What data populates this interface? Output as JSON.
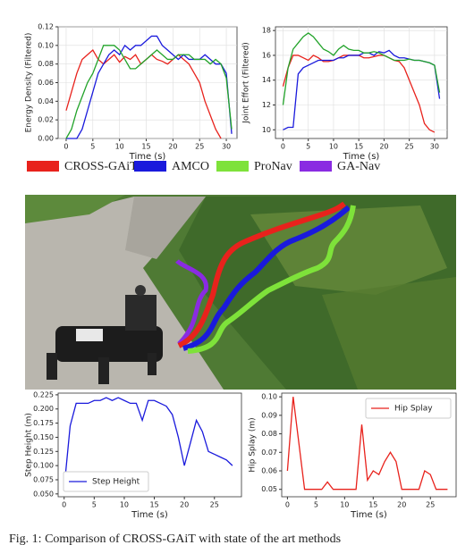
{
  "chart_data": [
    {
      "type": "line",
      "xlabel": "Time (s)",
      "ylabel": "Energy Density (Filtered)",
      "xlim": [
        -1.5,
        32
      ],
      "ylim": [
        0,
        0.12
      ],
      "xticks": [
        0,
        5,
        10,
        15,
        20,
        25,
        30
      ],
      "yticks": [
        {
          "value": 0,
          "label": "0.00"
        },
        {
          "value": 0.02,
          "label": "0.02"
        },
        {
          "value": 0.04,
          "label": "0.04"
        },
        {
          "value": 0.06,
          "label": "0.06"
        },
        {
          "value": 0.08,
          "label": "0.08"
        },
        {
          "value": 0.1,
          "label": "0.10"
        },
        {
          "value": 0.12,
          "label": "0.12"
        }
      ],
      "grid": true,
      "series": [
        {
          "color": "#e8221c",
          "x": [
            0,
            1,
            2,
            3,
            4,
            5,
            6,
            7,
            8,
            9,
            10,
            11,
            12,
            13,
            14,
            15,
            16,
            17,
            18,
            19,
            20,
            21,
            22,
            23,
            24,
            25,
            26,
            27,
            28,
            29
          ],
          "values": [
            0.03,
            0.05,
            0.07,
            0.085,
            0.09,
            0.095,
            0.085,
            0.08,
            0.085,
            0.09,
            0.082,
            0.088,
            0.085,
            0.09,
            0.08,
            0.085,
            0.09,
            0.085,
            0.083,
            0.08,
            0.085,
            0.09,
            0.085,
            0.08,
            0.07,
            0.06,
            0.04,
            0.025,
            0.01,
            0.0
          ]
        },
        {
          "color": "#1a1adc",
          "x": [
            0,
            1,
            2,
            3,
            4,
            5,
            6,
            7,
            8,
            9,
            10,
            11,
            12,
            13,
            14,
            15,
            16,
            17,
            18,
            19,
            20,
            21,
            22,
            23,
            24,
            25,
            26,
            27,
            28,
            29,
            30,
            31
          ],
          "values": [
            0.0,
            0.0,
            0.0,
            0.01,
            0.03,
            0.05,
            0.07,
            0.08,
            0.09,
            0.095,
            0.09,
            0.1,
            0.095,
            0.1,
            0.1,
            0.105,
            0.11,
            0.11,
            0.1,
            0.095,
            0.09,
            0.085,
            0.09,
            0.085,
            0.085,
            0.085,
            0.09,
            0.085,
            0.08,
            0.08,
            0.07,
            0.005
          ]
        },
        {
          "color": "#22a32a",
          "x": [
            0,
            1,
            2,
            3,
            4,
            5,
            6,
            7,
            8,
            9,
            10,
            11,
            12,
            13,
            14,
            15,
            16,
            17,
            18,
            19,
            20,
            21,
            22,
            23,
            24,
            25,
            26,
            27,
            28,
            29,
            30,
            31
          ],
          "values": [
            0.0,
            0.01,
            0.03,
            0.045,
            0.06,
            0.07,
            0.085,
            0.1,
            0.1,
            0.1,
            0.095,
            0.085,
            0.075,
            0.075,
            0.08,
            0.085,
            0.09,
            0.095,
            0.09,
            0.085,
            0.085,
            0.09,
            0.09,
            0.09,
            0.085,
            0.085,
            0.085,
            0.08,
            0.085,
            0.08,
            0.065,
            0.01
          ]
        }
      ]
    },
    {
      "type": "line",
      "xlabel": "Time (s)",
      "ylabel": "Joint Effort (Filtered)",
      "xlim": [
        -1.5,
        32.5
      ],
      "ylim": [
        9.3,
        18.3
      ],
      "xticks": [
        0,
        5,
        10,
        15,
        20,
        25,
        30
      ],
      "yticks": [
        10,
        12,
        14,
        16,
        18
      ],
      "grid": true,
      "series": [
        {
          "color": "#e8221c",
          "x": [
            0,
            1,
            2,
            3,
            4,
            5,
            6,
            7,
            8,
            9,
            10,
            11,
            12,
            13,
            14,
            15,
            16,
            17,
            18,
            19,
            20,
            21,
            22,
            23,
            24,
            25,
            26,
            27,
            28,
            29,
            30
          ],
          "values": [
            13.5,
            15,
            16,
            16,
            15.8,
            15.6,
            16,
            15.8,
            15.5,
            15.5,
            15.6,
            15.8,
            16,
            16,
            16,
            16,
            15.8,
            15.8,
            15.9,
            16,
            16,
            15.8,
            15.6,
            15.5,
            15,
            14,
            13,
            12,
            10.5,
            10,
            9.8
          ]
        },
        {
          "color": "#1a1adc",
          "x": [
            0,
            1,
            2,
            3,
            4,
            5,
            6,
            7,
            8,
            9,
            10,
            11,
            12,
            13,
            14,
            15,
            16,
            17,
            18,
            19,
            20,
            21,
            22,
            23,
            24,
            25,
            26,
            27,
            28,
            29,
            30,
            31
          ],
          "values": [
            10,
            10.2,
            10.2,
            14.5,
            15,
            15.2,
            15.4,
            15.6,
            15.6,
            15.6,
            15.6,
            15.8,
            15.8,
            16,
            16,
            16,
            16.2,
            16.2,
            16,
            16.3,
            16.2,
            16.4,
            16,
            15.8,
            15.8,
            15.7,
            15.6,
            15.6,
            15.5,
            15.4,
            15.2,
            12.5
          ]
        },
        {
          "color": "#22a32a",
          "x": [
            0,
            1,
            2,
            3,
            4,
            5,
            6,
            7,
            8,
            9,
            10,
            11,
            12,
            13,
            14,
            15,
            16,
            17,
            18,
            19,
            20,
            21,
            22,
            23,
            24,
            25,
            26,
            27,
            28,
            29,
            30,
            31
          ],
          "values": [
            12,
            15,
            16.5,
            17,
            17.5,
            17.8,
            17.5,
            17,
            16.5,
            16.3,
            16,
            16.5,
            16.8,
            16.5,
            16.4,
            16.4,
            16.2,
            16.2,
            16.3,
            16.2,
            16,
            15.8,
            15.6,
            15.6,
            15.6,
            15.7,
            15.6,
            15.6,
            15.5,
            15.4,
            15.2,
            13
          ]
        }
      ]
    },
    {
      "type": "line",
      "xlabel": "Time (s)",
      "ylabel": "Step Height (m)",
      "xlim": [
        -1,
        29.5
      ],
      "ylim": [
        0.045,
        0.228
      ],
      "xticks": [
        0,
        5,
        10,
        15,
        20,
        25
      ],
      "yticks": [
        {
          "value": 0.05,
          "label": "0.050"
        },
        {
          "value": 0.075,
          "label": "0.075"
        },
        {
          "value": 0.1,
          "label": "0.100"
        },
        {
          "value": 0.125,
          "label": "0.125"
        },
        {
          "value": 0.15,
          "label": "0.150"
        },
        {
          "value": 0.175,
          "label": "0.175"
        },
        {
          "value": 0.2,
          "label": "0.200"
        },
        {
          "value": 0.225,
          "label": "0.225"
        }
      ],
      "grid": false,
      "legend_position": "lower left",
      "series": [
        {
          "name": "Step Height",
          "color": "#1a1adc",
          "x": [
            0,
            1,
            2,
            3,
            4,
            5,
            6,
            7,
            8,
            9,
            10,
            11,
            12,
            13,
            14,
            15,
            16,
            17,
            18,
            19,
            20,
            21,
            22,
            23,
            24,
            25,
            26,
            27,
            28
          ],
          "values": [
            0.06,
            0.17,
            0.21,
            0.21,
            0.21,
            0.215,
            0.215,
            0.22,
            0.215,
            0.22,
            0.215,
            0.21,
            0.21,
            0.18,
            0.215,
            0.215,
            0.21,
            0.205,
            0.19,
            0.15,
            0.1,
            0.14,
            0.18,
            0.16,
            0.125,
            0.12,
            0.115,
            0.11,
            0.1
          ]
        }
      ]
    },
    {
      "type": "line",
      "xlabel": "Time (s)",
      "ylabel": "Hip Splay (m)",
      "xlim": [
        -1,
        29.5
      ],
      "ylim": [
        0.046,
        0.102
      ],
      "xticks": [
        0,
        5,
        10,
        15,
        20,
        25
      ],
      "yticks": [
        {
          "value": 0.05,
          "label": "0.05"
        },
        {
          "value": 0.06,
          "label": "0.06"
        },
        {
          "value": 0.07,
          "label": "0.07"
        },
        {
          "value": 0.08,
          "label": "0.08"
        },
        {
          "value": 0.09,
          "label": "0.09"
        },
        {
          "value": 0.1,
          "label": "0.10"
        }
      ],
      "grid": false,
      "legend_position": "upper right",
      "series": [
        {
          "name": "Hip Splay",
          "color": "#e8221c",
          "x": [
            0,
            1,
            2,
            3,
            4,
            5,
            6,
            7,
            8,
            9,
            10,
            11,
            12,
            13,
            14,
            15,
            16,
            17,
            18,
            19,
            20,
            21,
            22,
            23,
            24,
            25,
            26,
            27,
            28
          ],
          "values": [
            0.06,
            0.1,
            0.075,
            0.05,
            0.05,
            0.05,
            0.05,
            0.054,
            0.05,
            0.05,
            0.05,
            0.05,
            0.05,
            0.085,
            0.055,
            0.06,
            0.058,
            0.065,
            0.07,
            0.065,
            0.05,
            0.05,
            0.05,
            0.05,
            0.06,
            0.058,
            0.05,
            0.05,
            0.05
          ]
        }
      ]
    }
  ],
  "legend": [
    {
      "name": "CROSS-GAiT",
      "color": "#e8221c"
    },
    {
      "name": "AMCO",
      "color": "#1a1adc"
    },
    {
      "name": "ProNav",
      "color": "#7ee23a"
    },
    {
      "name": "GA-Nav",
      "color": "#8a2be2"
    }
  ],
  "caption": "Fig. 1: Comparison of CROSS-GAiT with state of the art methods"
}
